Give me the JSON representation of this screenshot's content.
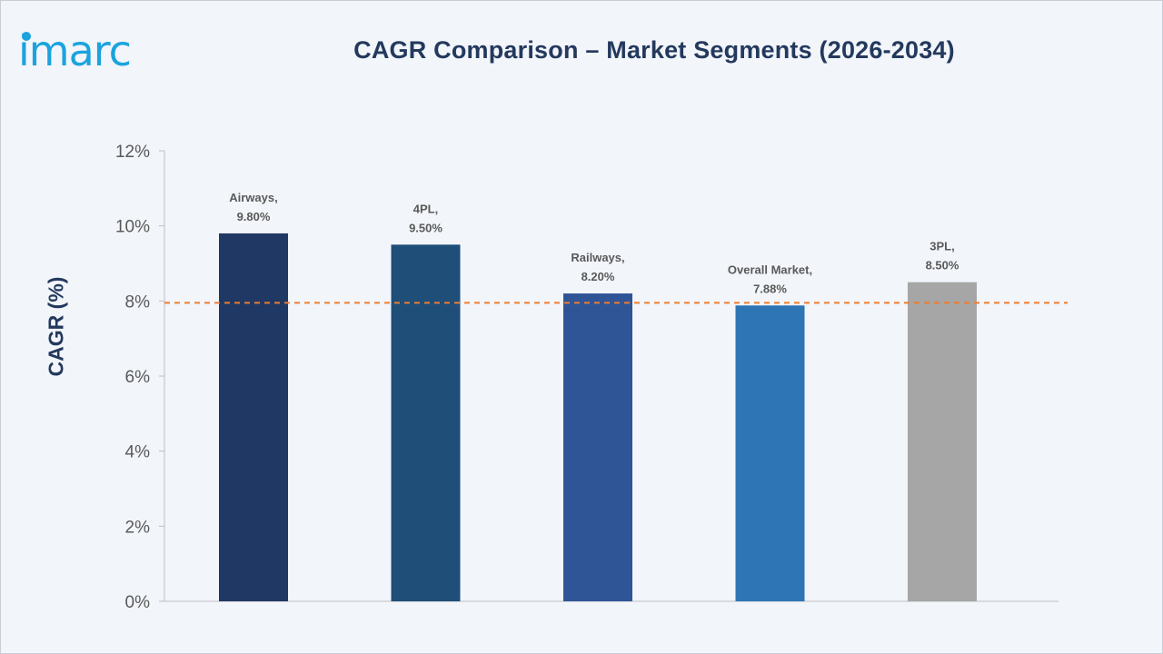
{
  "brand": {
    "logo_text": "imarc",
    "logo_color": "#1ba3dd"
  },
  "chart_data": {
    "type": "bar",
    "title": "CAGR Comparison – Market Segments (2026-2034)",
    "ylabel": "CAGR (%)",
    "xlabel": "",
    "categories": [
      "Airways",
      "4PL",
      "Railways",
      "Overall Market",
      "3PL"
    ],
    "values": [
      9.8,
      9.5,
      8.2,
      7.88,
      8.5
    ],
    "data_labels": [
      [
        "Airways,",
        "9.80%"
      ],
      [
        "4PL,",
        "9.50%"
      ],
      [
        "Railways,",
        "8.20%"
      ],
      [
        "Overall Market,",
        "7.88%"
      ],
      [
        "3PL,",
        "8.50%"
      ]
    ],
    "bar_colors": [
      "#203864",
      "#1f4e79",
      "#2f5597",
      "#2e75b6",
      "#a6a6a6"
    ],
    "ylim": [
      0,
      12
    ],
    "yticks": [
      0,
      2,
      4,
      6,
      8,
      10,
      12
    ],
    "ytick_labels": [
      "0%",
      "2%",
      "4%",
      "6%",
      "8%",
      "10%",
      "12%"
    ],
    "reference_line": {
      "value": 7.95,
      "style": "dashed",
      "color": "#ed7d31"
    },
    "grid": false,
    "legend": "none"
  }
}
